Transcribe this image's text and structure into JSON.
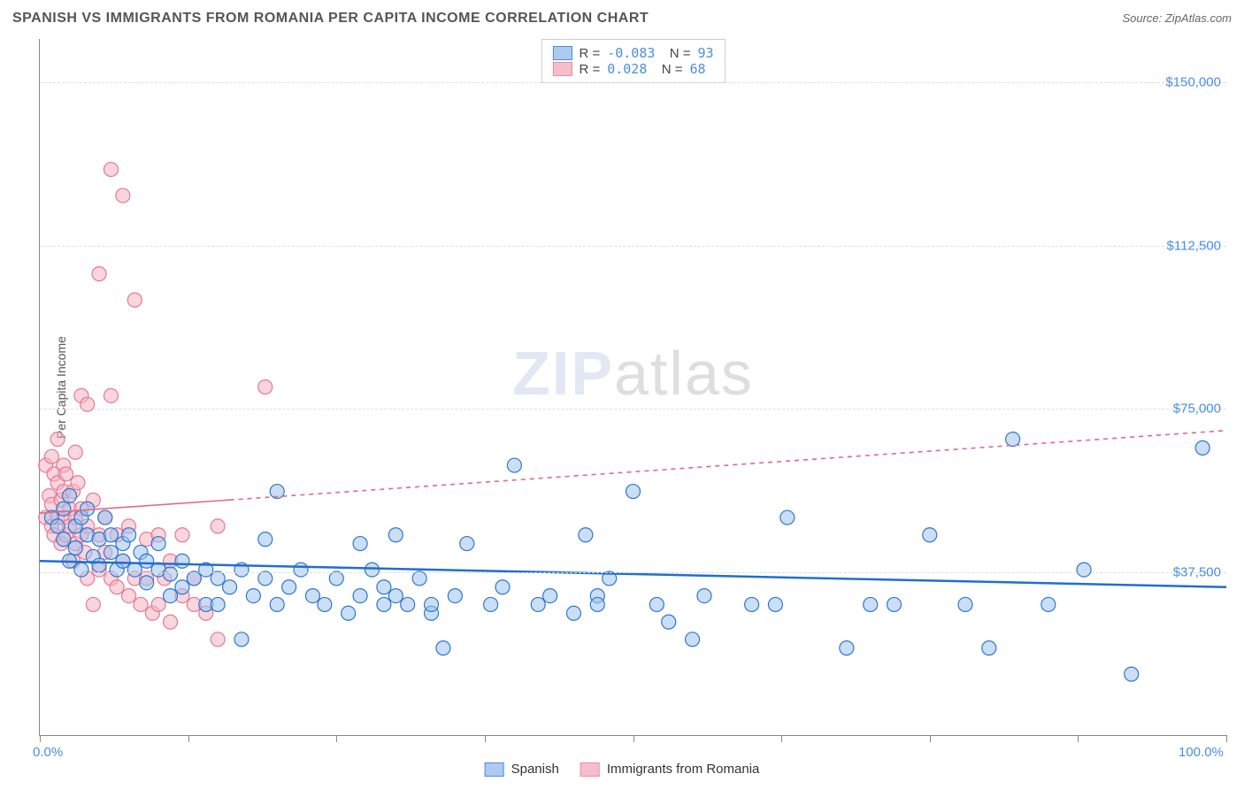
{
  "header": {
    "title": "SPANISH VS IMMIGRANTS FROM ROMANIA PER CAPITA INCOME CORRELATION CHART",
    "source": "Source: ZipAtlas.com"
  },
  "watermark": {
    "zip": "ZIP",
    "atlas": "atlas"
  },
  "chart": {
    "type": "scatter",
    "xlim": [
      0,
      100
    ],
    "ylim": [
      0,
      160000
    ],
    "x_ticks": [
      0,
      12.5,
      25,
      37.5,
      50,
      62.5,
      75,
      87.5,
      100
    ],
    "x_tick_labels_shown": {
      "0": "0.0%",
      "100": "100.0%"
    },
    "y_gridlines": [
      37500,
      75000,
      112500,
      150000
    ],
    "y_tick_labels": {
      "37500": "$37,500",
      "75000": "$75,000",
      "112500": "$112,500",
      "150000": "$150,000"
    },
    "y_axis_title": "Per Capita Income",
    "background_color": "#ffffff",
    "grid_color": "#dddddd",
    "series": {
      "spanish": {
        "label": "Spanish",
        "fill": "#9fc3ee",
        "stroke": "#2f77cc",
        "fill_opacity": 0.55,
        "marker_r": 8,
        "R": "-0.083",
        "N": "93",
        "trend": {
          "x1": 0,
          "y1": 40000,
          "x2": 100,
          "y2": 34000,
          "solid_until_x": 100,
          "stroke": "#1f6fd0",
          "stroke_width": 2.5
        },
        "points": [
          [
            1,
            50000
          ],
          [
            1.5,
            48000
          ],
          [
            2,
            45000
          ],
          [
            2,
            52000
          ],
          [
            2.5,
            40000
          ],
          [
            2.5,
            55000
          ],
          [
            3,
            43000
          ],
          [
            3,
            48000
          ],
          [
            3.5,
            50000
          ],
          [
            3.5,
            38000
          ],
          [
            4,
            46000
          ],
          [
            4,
            52000
          ],
          [
            4.5,
            41000
          ],
          [
            5,
            45000
          ],
          [
            5,
            39000
          ],
          [
            5.5,
            50000
          ],
          [
            6,
            42000
          ],
          [
            6,
            46000
          ],
          [
            6.5,
            38000
          ],
          [
            7,
            44000
          ],
          [
            7,
            40000
          ],
          [
            7.5,
            46000
          ],
          [
            8,
            38000
          ],
          [
            8.5,
            42000
          ],
          [
            9,
            40000
          ],
          [
            9,
            35000
          ],
          [
            10,
            38000
          ],
          [
            10,
            44000
          ],
          [
            11,
            37000
          ],
          [
            11,
            32000
          ],
          [
            12,
            40000
          ],
          [
            12,
            34000
          ],
          [
            13,
            36000
          ],
          [
            14,
            38000
          ],
          [
            14,
            30000
          ],
          [
            15,
            30000
          ],
          [
            15,
            36000
          ],
          [
            16,
            34000
          ],
          [
            17,
            38000
          ],
          [
            17,
            22000
          ],
          [
            18,
            32000
          ],
          [
            19,
            45000
          ],
          [
            19,
            36000
          ],
          [
            20,
            30000
          ],
          [
            20,
            56000
          ],
          [
            21,
            34000
          ],
          [
            22,
            38000
          ],
          [
            23,
            32000
          ],
          [
            24,
            30000
          ],
          [
            25,
            36000
          ],
          [
            26,
            28000
          ],
          [
            27,
            44000
          ],
          [
            27,
            32000
          ],
          [
            28,
            38000
          ],
          [
            29,
            30000
          ],
          [
            29,
            34000
          ],
          [
            30,
            46000
          ],
          [
            30,
            32000
          ],
          [
            31,
            30000
          ],
          [
            32,
            36000
          ],
          [
            33,
            28000
          ],
          [
            33,
            30000
          ],
          [
            34,
            20000
          ],
          [
            35,
            32000
          ],
          [
            36,
            44000
          ],
          [
            38,
            30000
          ],
          [
            39,
            34000
          ],
          [
            40,
            62000
          ],
          [
            42,
            30000
          ],
          [
            43,
            32000
          ],
          [
            45,
            28000
          ],
          [
            46,
            46000
          ],
          [
            47,
            32000
          ],
          [
            47,
            30000
          ],
          [
            48,
            36000
          ],
          [
            50,
            56000
          ],
          [
            52,
            30000
          ],
          [
            53,
            26000
          ],
          [
            55,
            22000
          ],
          [
            56,
            32000
          ],
          [
            60,
            30000
          ],
          [
            62,
            30000
          ],
          [
            63,
            50000
          ],
          [
            68,
            20000
          ],
          [
            70,
            30000
          ],
          [
            72,
            30000
          ],
          [
            75,
            46000
          ],
          [
            78,
            30000
          ],
          [
            80,
            20000
          ],
          [
            82,
            68000
          ],
          [
            85,
            30000
          ],
          [
            88,
            38000
          ],
          [
            92,
            14000
          ],
          [
            98,
            66000
          ]
        ]
      },
      "romania": {
        "label": "Immigrants from Romania",
        "fill": "#f4b3c2",
        "stroke": "#e47a93",
        "fill_opacity": 0.55,
        "marker_r": 8,
        "R": "0.028",
        "N": "68",
        "trend": {
          "x1": 0,
          "y1": 51000,
          "x2": 100,
          "y2": 70000,
          "solid_until_x": 16,
          "stroke": "#e06a85",
          "stroke_width": 1.6,
          "dash": "5,5"
        },
        "points": [
          [
            0.5,
            50000
          ],
          [
            0.5,
            62000
          ],
          [
            0.8,
            55000
          ],
          [
            1,
            64000
          ],
          [
            1,
            48000
          ],
          [
            1,
            53000
          ],
          [
            1.2,
            60000
          ],
          [
            1.2,
            46000
          ],
          [
            1.5,
            58000
          ],
          [
            1.5,
            50000
          ],
          [
            1.5,
            68000
          ],
          [
            1.8,
            54000
          ],
          [
            1.8,
            44000
          ],
          [
            2,
            62000
          ],
          [
            2,
            50000
          ],
          [
            2,
            56000
          ],
          [
            2.2,
            46000
          ],
          [
            2.2,
            60000
          ],
          [
            2.5,
            52000
          ],
          [
            2.5,
            48000
          ],
          [
            2.8,
            56000
          ],
          [
            2.8,
            40000
          ],
          [
            3,
            65000
          ],
          [
            3,
            50000
          ],
          [
            3,
            44000
          ],
          [
            3.2,
            58000
          ],
          [
            3.5,
            46000
          ],
          [
            3.5,
            52000
          ],
          [
            3.5,
            78000
          ],
          [
            3.8,
            42000
          ],
          [
            4,
            48000
          ],
          [
            4,
            76000
          ],
          [
            4,
            36000
          ],
          [
            4.5,
            54000
          ],
          [
            4.5,
            30000
          ],
          [
            5,
            46000
          ],
          [
            5,
            38000
          ],
          [
            5,
            106000
          ],
          [
            5.5,
            42000
          ],
          [
            5.5,
            50000
          ],
          [
            6,
            36000
          ],
          [
            6,
            78000
          ],
          [
            6,
            130000
          ],
          [
            6.5,
            34000
          ],
          [
            6.5,
            46000
          ],
          [
            7,
            40000
          ],
          [
            7,
            124000
          ],
          [
            7.5,
            32000
          ],
          [
            7.5,
            48000
          ],
          [
            8,
            100000
          ],
          [
            8,
            36000
          ],
          [
            8.5,
            30000
          ],
          [
            9,
            45000
          ],
          [
            9,
            36000
          ],
          [
            9.5,
            28000
          ],
          [
            10,
            46000
          ],
          [
            10,
            30000
          ],
          [
            10.5,
            36000
          ],
          [
            11,
            26000
          ],
          [
            11,
            40000
          ],
          [
            12,
            32000
          ],
          [
            12,
            46000
          ],
          [
            13,
            30000
          ],
          [
            13,
            36000
          ],
          [
            14,
            28000
          ],
          [
            15,
            48000
          ],
          [
            15,
            22000
          ],
          [
            19,
            80000
          ]
        ]
      }
    }
  },
  "legend_bottom": [
    {
      "key": "spanish",
      "label": "Spanish"
    },
    {
      "key": "romania",
      "label": "Immigrants from Romania"
    }
  ]
}
